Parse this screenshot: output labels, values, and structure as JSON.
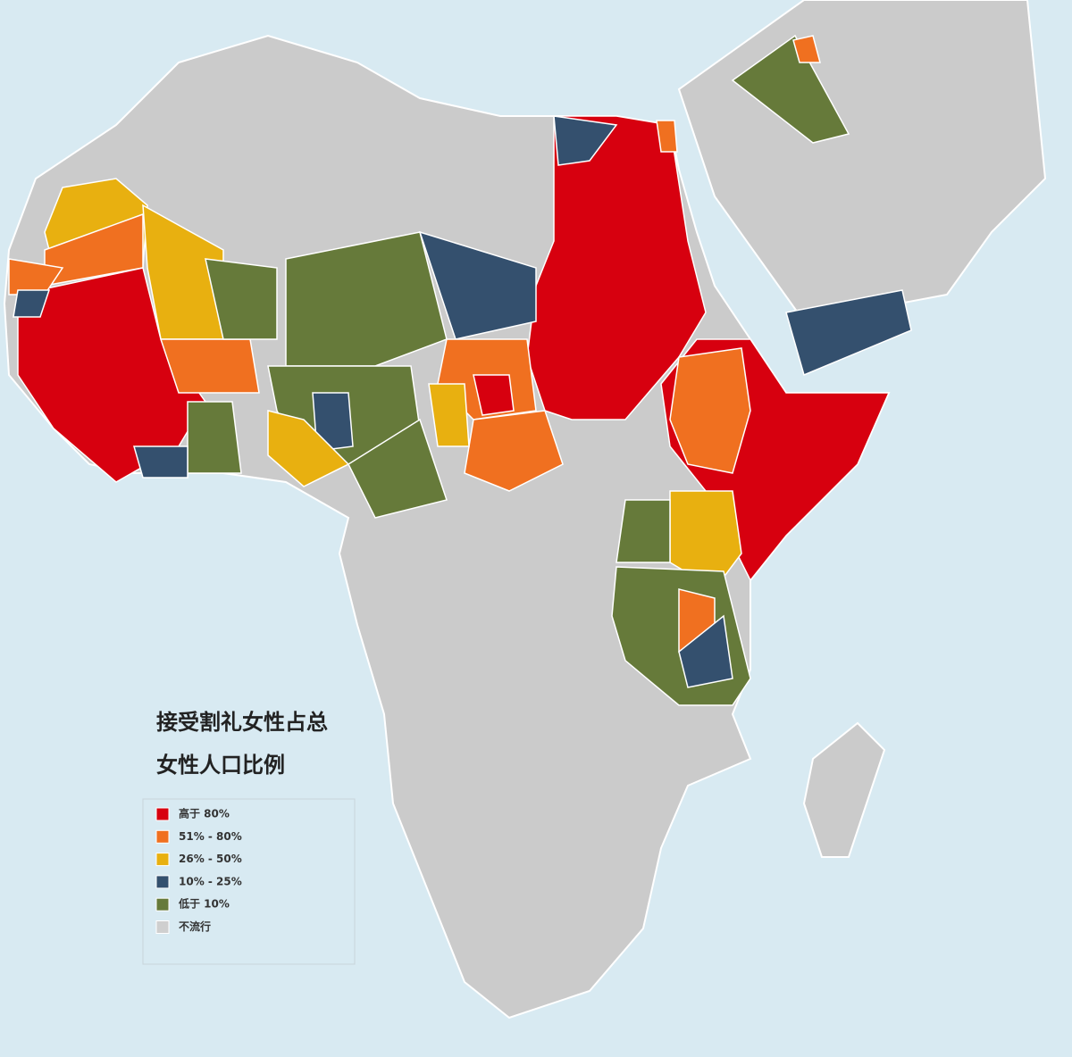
{
  "title_lines": [
    "接受割礼女性占总",
    "女性人口比例"
  ],
  "legend": [
    {
      "label": "高于 80%",
      "color": "#d7000f"
    },
    {
      "label": "51% - 80%",
      "color": "#f07020"
    },
    {
      "label": "26% - 50%",
      "color": "#e8b010"
    },
    {
      "label": "10% - 25%",
      "color": "#34506e"
    },
    {
      "label": "低于 10%",
      "color": "#667a3a"
    },
    {
      "label": "不流行",
      "color": "#cfcfcf"
    }
  ]
}
